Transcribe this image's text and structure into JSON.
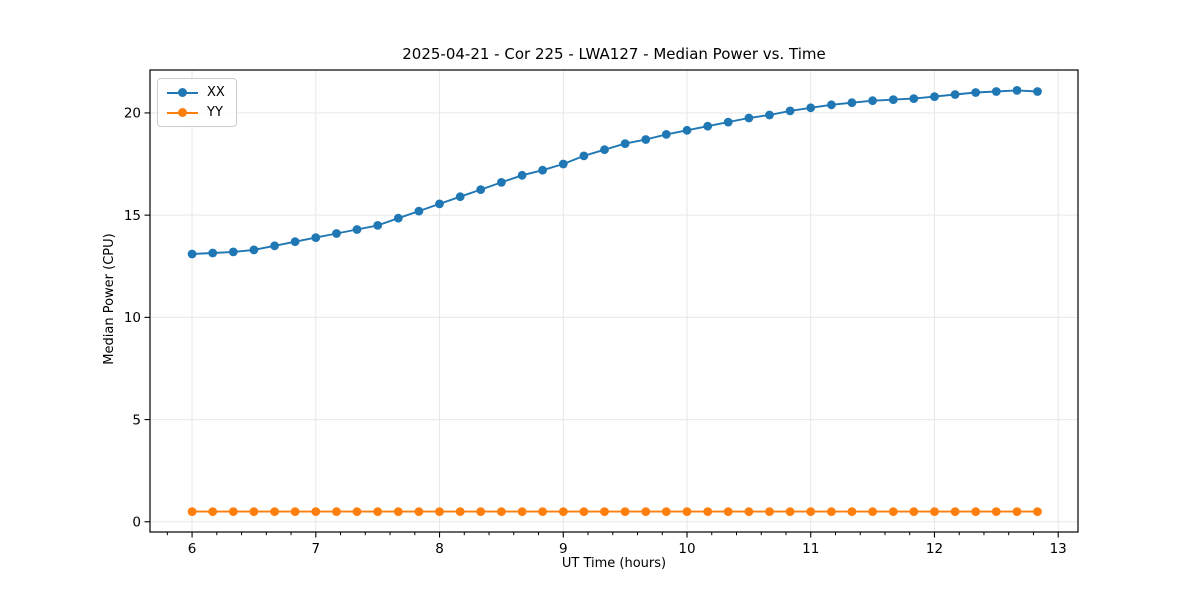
{
  "chart_data": {
    "type": "line",
    "title": "2025-04-21 - Cor 225 - LWA127 - Median Power vs. Time",
    "xlabel": "UT Time (hours)",
    "ylabel": "Median Power (CPU)",
    "xlim": [
      5.66,
      13.16
    ],
    "ylim": [
      -0.5,
      22.1
    ],
    "xticks": [
      6,
      7,
      8,
      9,
      10,
      11,
      12,
      13
    ],
    "yticks": [
      0,
      5,
      10,
      15,
      20
    ],
    "x_minor_step": 0.2,
    "grid": true,
    "grid_color": "#e7e7e7",
    "legend_position": "upper left",
    "x": [
      6.0,
      6.167,
      6.333,
      6.5,
      6.667,
      6.833,
      7.0,
      7.167,
      7.333,
      7.5,
      7.667,
      7.833,
      8.0,
      8.167,
      8.333,
      8.5,
      8.667,
      8.833,
      9.0,
      9.167,
      9.333,
      9.5,
      9.667,
      9.833,
      10.0,
      10.167,
      10.333,
      10.5,
      10.667,
      10.833,
      11.0,
      11.167,
      11.333,
      11.5,
      11.667,
      11.833,
      12.0,
      12.167,
      12.333,
      12.5,
      12.667,
      12.833
    ],
    "series": [
      {
        "name": "XX",
        "color": "#1f77b4",
        "values": [
          13.1,
          13.15,
          13.2,
          13.3,
          13.5,
          13.7,
          13.9,
          14.1,
          14.3,
          14.5,
          14.85,
          15.2,
          15.55,
          15.9,
          16.25,
          16.6,
          16.95,
          17.2,
          17.5,
          17.9,
          18.2,
          18.5,
          18.7,
          18.95,
          19.15,
          19.35,
          19.55,
          19.75,
          19.9,
          20.1,
          20.25,
          20.4,
          20.5,
          20.6,
          20.65,
          20.7,
          20.8,
          20.9,
          21.0,
          21.05,
          21.1,
          21.05
        ]
      },
      {
        "name": "YY",
        "color": "#ff7f0e",
        "values": [
          0.5,
          0.5,
          0.5,
          0.5,
          0.5,
          0.5,
          0.5,
          0.5,
          0.5,
          0.5,
          0.5,
          0.5,
          0.5,
          0.5,
          0.5,
          0.5,
          0.5,
          0.5,
          0.5,
          0.5,
          0.5,
          0.5,
          0.5,
          0.5,
          0.5,
          0.5,
          0.5,
          0.5,
          0.5,
          0.5,
          0.5,
          0.5,
          0.5,
          0.5,
          0.5,
          0.5,
          0.5,
          0.5,
          0.5,
          0.5,
          0.5,
          0.5
        ]
      }
    ]
  }
}
